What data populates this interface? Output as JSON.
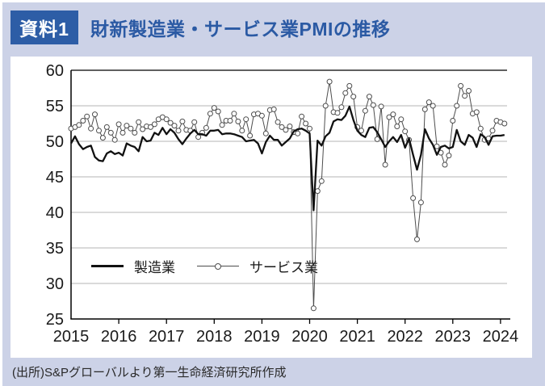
{
  "header": {
    "badge": "資料1",
    "title": "財新製造業・サービス業PMIの推移"
  },
  "footer": {
    "source": "(出所)S&Pグローバルより第一生命経済研究所作成"
  },
  "colors": {
    "page_background": "#ccd2e7",
    "badge_blue": "#2d5da6",
    "title_blue": "#2b5aa4",
    "panel": "#ffffff",
    "gridline": "#b5b5b5",
    "axis": "#000000"
  },
  "chart_data": {
    "type": "line",
    "title": "財新製造業・サービス業PMIの推移",
    "xlabel": "",
    "ylabel": "",
    "x_unit": "month",
    "x_start": "2015-01",
    "x_end": "2024-02",
    "x_tick_labels": [
      "2015",
      "2016",
      "2017",
      "2018",
      "2019",
      "2020",
      "2021",
      "2022",
      "2023",
      "2024"
    ],
    "y_ticks": [
      25,
      30,
      35,
      40,
      45,
      50,
      55,
      60
    ],
    "ylim": [
      25,
      60
    ],
    "grid": true,
    "legend_position": "inside-lower-left",
    "colors": {
      "manufacturing": "#111111",
      "services": "#4d4d4d"
    },
    "series": [
      {
        "name": "製造業",
        "style": "solid-thick-black",
        "values": [
          49.7,
          50.7,
          49.6,
          48.9,
          49.2,
          49.4,
          47.8,
          47.3,
          47.2,
          48.3,
          48.6,
          48.2,
          48.4,
          48.0,
          49.7,
          49.4,
          49.2,
          48.6,
          50.6,
          50.0,
          50.1,
          51.2,
          50.9,
          51.9,
          51.0,
          51.7,
          51.2,
          50.3,
          49.6,
          50.4,
          51.1,
          51.6,
          51.0,
          51.0,
          50.8,
          51.5,
          51.5,
          51.6,
          51.0,
          51.1,
          51.1,
          51.0,
          50.8,
          50.6,
          50.0,
          50.1,
          50.2,
          49.7,
          48.3,
          49.9,
          50.8,
          50.2,
          50.2,
          49.4,
          49.9,
          50.4,
          51.4,
          51.7,
          51.8,
          51.5,
          51.1,
          40.3,
          50.1,
          49.4,
          50.7,
          51.2,
          52.8,
          53.1,
          53.0,
          53.6,
          54.9,
          53.0,
          51.5,
          50.9,
          50.6,
          51.9,
          52.0,
          51.3,
          50.3,
          49.2,
          50.0,
          50.6,
          49.9,
          50.9,
          49.1,
          50.4,
          48.1,
          46.0,
          48.1,
          51.7,
          50.4,
          49.5,
          48.1,
          49.2,
          49.4,
          49.0,
          49.2,
          51.6,
          50.0,
          49.5,
          50.9,
          50.5,
          49.2,
          51.0,
          50.6,
          49.5,
          50.7,
          50.8,
          50.8,
          50.9
        ]
      },
      {
        "name": "サービス業",
        "style": "thin-line-open-circle-markers",
        "values": [
          51.8,
          52.0,
          52.3,
          52.9,
          53.5,
          51.8,
          53.8,
          51.5,
          50.5,
          52.0,
          51.2,
          50.2,
          52.4,
          51.2,
          52.2,
          51.8,
          51.2,
          52.7,
          51.7,
          52.1,
          52.0,
          52.4,
          53.1,
          53.4,
          53.1,
          52.6,
          52.2,
          51.5,
          52.8,
          51.6,
          51.5,
          52.7,
          50.6,
          51.2,
          51.9,
          53.9,
          54.7,
          54.2,
          52.3,
          52.9,
          52.9,
          53.9,
          52.8,
          51.5,
          53.1,
          50.8,
          53.8,
          53.9,
          53.6,
          51.1,
          54.4,
          54.5,
          52.7,
          52.0,
          51.6,
          52.1,
          51.3,
          51.1,
          53.5,
          52.5,
          51.8,
          26.5,
          43.0,
          44.4,
          55.0,
          58.4,
          54.1,
          54.0,
          54.8,
          56.8,
          57.8,
          56.3,
          52.0,
          51.5,
          54.3,
          56.3,
          55.1,
          50.3,
          54.9,
          46.7,
          53.4,
          53.8,
          52.1,
          53.1,
          51.4,
          50.2,
          42.0,
          36.2,
          41.4,
          54.5,
          55.5,
          55.0,
          49.3,
          48.4,
          46.7,
          48.0,
          52.9,
          55.0,
          57.8,
          56.4,
          57.1,
          53.9,
          54.1,
          51.8,
          50.2,
          50.4,
          51.5,
          52.9,
          52.7,
          52.5
        ]
      }
    ]
  }
}
